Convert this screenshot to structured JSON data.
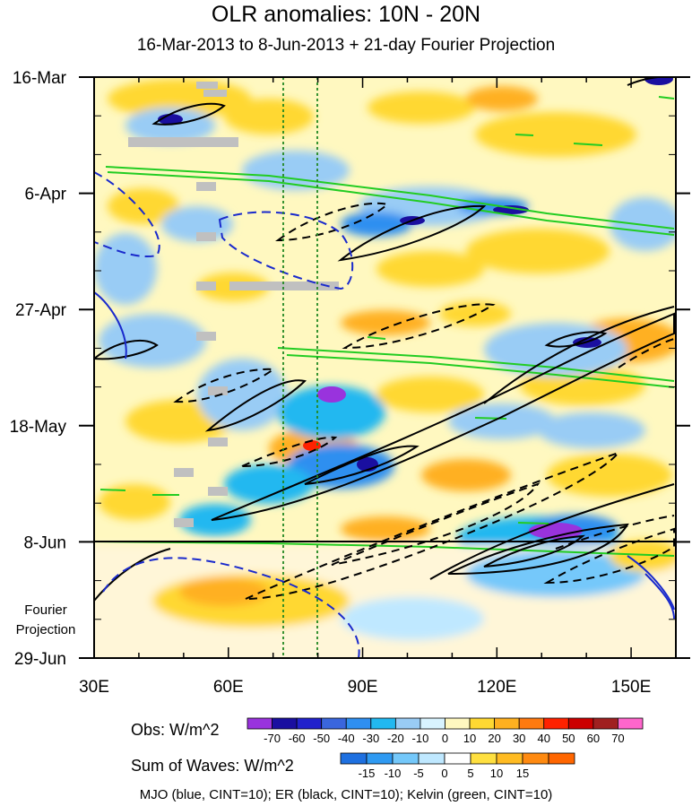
{
  "header": {
    "title": "OLR anomalies: 10N - 20N",
    "subtitle": "16-Mar-2013 to 8-Jun-2013 + 21-day Fourier Projection"
  },
  "fourier_label": [
    "Fourier",
    "Projection"
  ],
  "colorbars": {
    "obs": {
      "label": "Obs: W/m^2",
      "ticks": [
        "-70",
        "-60",
        "-50",
        "-40",
        "-30",
        "-20",
        "-10",
        "0",
        "10",
        "20",
        "30",
        "40",
        "50",
        "60",
        "70"
      ],
      "colors": [
        "#9933dd",
        "#1a0fa0",
        "#2222cc",
        "#3a66dd",
        "#2f8ff0",
        "#22b8f0",
        "#99ccf5",
        "#d8f3ff",
        "#fff8c0",
        "#ffd832",
        "#ffb020",
        "#ff7a10",
        "#ff2200",
        "#cc0000",
        "#a02020",
        "#ff66cc"
      ]
    },
    "waves": {
      "label": "Sum of Waves: W/m^2",
      "ticks": [
        "-15",
        "-10",
        "-5",
        "0",
        "5",
        "10",
        "15"
      ],
      "colors": [
        "#1e70e0",
        "#2f9af2",
        "#74c8fa",
        "#bfe8ff",
        "#ffffff",
        "#ffe040",
        "#ffbb22",
        "#ff8a10",
        "#ff6600"
      ]
    }
  },
  "footer": "MJO (blue, CINT=10); ER (black, CINT=10); Kelvin (green, CINT=10)",
  "chart_data": {
    "type": "heatmap",
    "title": "OLR anomalies: 10N - 20N",
    "subtitle": "16-Mar-2013 to 8-Jun-2013 + 21-day Fourier Projection",
    "x_ticks": [
      30,
      60,
      90,
      120,
      150
    ],
    "x_tick_labels": [
      "30E",
      "60E",
      "90E",
      "120E",
      "150E"
    ],
    "xlim": [
      30,
      160
    ],
    "y_ticks": [
      "16-Mar",
      "6-Apr",
      "27-Apr",
      "18-May",
      "8-Jun",
      "29-Jun"
    ],
    "y_range": [
      "16-Mar-2013",
      "29-Jun-2013"
    ],
    "observation_end": "8-Jun-2013",
    "vertical_reference_lines_lon": [
      72,
      80
    ],
    "highlights": [
      {
        "lon": 85,
        "date": "12-May",
        "value": -70
      },
      {
        "lon": 92,
        "date": "25-May",
        "value": -60
      },
      {
        "lon": 132,
        "date": "8-Jun",
        "value": -70
      },
      {
        "lon": 143,
        "date": "2-May",
        "value": -60
      },
      {
        "lon": 103,
        "date": "12-Apr",
        "value": -60
      },
      {
        "lon": 118,
        "date": "9-Apr",
        "value": -60
      },
      {
        "lon": 48,
        "date": "23-Mar",
        "value": -50
      },
      {
        "lon": 150,
        "date": "16-Mar",
        "value": -60
      }
    ]
  }
}
